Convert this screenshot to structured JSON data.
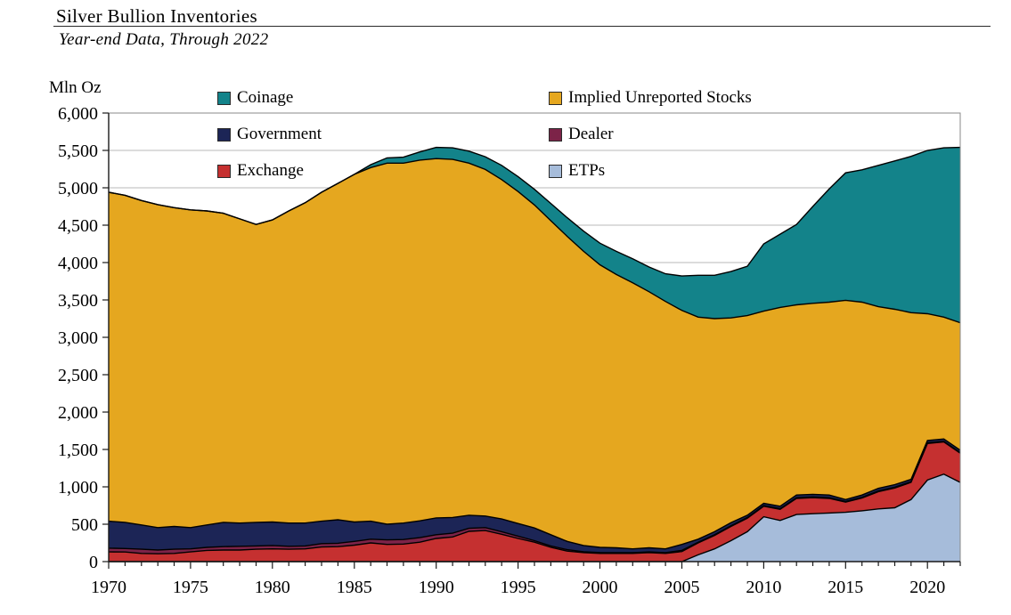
{
  "header": {
    "title": "Silver Bullion Inventories",
    "subtitle": "Year-end Data, Through 2022",
    "y_unit": "Mln Oz"
  },
  "chart_data": {
    "type": "area",
    "stacked": true,
    "title": "Silver Bullion Inventories",
    "subtitle": "Year-end Data, Through 2022",
    "ylabel": "Mln Oz",
    "xlabel": "",
    "ylim": [
      0,
      6000
    ],
    "ytick_step": 500,
    "grid": "horizontal",
    "legend_position": "top-inside-two-columns",
    "years": [
      1970,
      1971,
      1972,
      1973,
      1974,
      1975,
      1976,
      1977,
      1978,
      1979,
      1980,
      1981,
      1982,
      1983,
      1984,
      1985,
      1986,
      1987,
      1988,
      1989,
      1990,
      1991,
      1992,
      1993,
      1994,
      1995,
      1996,
      1997,
      1998,
      1999,
      2000,
      2001,
      2002,
      2003,
      2004,
      2005,
      2006,
      2007,
      2008,
      2009,
      2010,
      2011,
      2012,
      2013,
      2014,
      2015,
      2016,
      2017,
      2018,
      2019,
      2020,
      2021,
      2022
    ],
    "xtick_years": [
      1970,
      1975,
      1980,
      1985,
      1990,
      1995,
      2000,
      2005,
      2010,
      2015,
      2020
    ],
    "yticks": [
      0,
      500,
      1000,
      1500,
      2000,
      2500,
      3000,
      3500,
      4000,
      4500,
      5000,
      5500,
      6000
    ],
    "ytick_labels": [
      "0",
      "500",
      "1,000",
      "1,500",
      "2,000",
      "2,500",
      "3,000",
      "3,500",
      "4,000",
      "4,500",
      "5,000",
      "5,500",
      "6,000"
    ],
    "series": [
      {
        "name": "ETPs",
        "color": "#a6bcda",
        "values": [
          0,
          0,
          0,
          0,
          0,
          0,
          0,
          0,
          0,
          0,
          0,
          0,
          0,
          0,
          0,
          0,
          0,
          0,
          0,
          0,
          0,
          0,
          0,
          0,
          0,
          0,
          0,
          0,
          0,
          0,
          0,
          0,
          0,
          0,
          0,
          0,
          90,
          170,
          280,
          400,
          600,
          550,
          630,
          640,
          650,
          660,
          680,
          705,
          720,
          830,
          1090,
          1170,
          1060
        ]
      },
      {
        "name": "Exchange",
        "color": "#c53030",
        "values": [
          130,
          128,
          110,
          105,
          110,
          130,
          150,
          155,
          155,
          165,
          170,
          165,
          170,
          195,
          200,
          220,
          250,
          230,
          235,
          260,
          310,
          330,
          405,
          415,
          365,
          310,
          260,
          190,
          140,
          120,
          110,
          110,
          110,
          120,
          110,
          135,
          160,
          180,
          190,
          180,
          140,
          150,
          215,
          215,
          195,
          135,
          170,
          230,
          265,
          230,
          490,
          430,
          390
        ]
      },
      {
        "name": "Dealer",
        "color": "#7c2348",
        "values": [
          50,
          47,
          55,
          50,
          55,
          40,
          40,
          45,
          50,
          45,
          45,
          40,
          40,
          45,
          45,
          50,
          50,
          60,
          60,
          60,
          50,
          50,
          40,
          40,
          35,
          30,
          20,
          20,
          20,
          12,
          12,
          10,
          10,
          10,
          10,
          15,
          10,
          10,
          10,
          10,
          10,
          10,
          10,
          10,
          10,
          10,
          10,
          10,
          10,
          10,
          10,
          10,
          10
        ]
      },
      {
        "name": "Government",
        "color": "#1c2556",
        "values": [
          360,
          350,
          325,
          300,
          305,
          285,
          300,
          325,
          310,
          315,
          315,
          310,
          305,
          300,
          315,
          260,
          240,
          210,
          220,
          225,
          225,
          210,
          175,
          155,
          170,
          170,
          170,
          150,
          110,
          83,
          68,
          65,
          50,
          55,
          50,
          80,
          40,
          40,
          40,
          30,
          30,
          30,
          35,
          35,
          35,
          25,
          30,
          35,
          35,
          30,
          30,
          30,
          30
        ]
      },
      {
        "name": "Implied Unreported Stocks",
        "color": "#e5a71f",
        "values": [
          4400,
          4375,
          4340,
          4320,
          4265,
          4250,
          4200,
          4135,
          4070,
          3985,
          4040,
          4175,
          4285,
          4400,
          4500,
          4650,
          4730,
          4830,
          4815,
          4825,
          4805,
          4790,
          4710,
          4635,
          4540,
          4440,
          4320,
          4200,
          4080,
          3935,
          3780,
          3655,
          3560,
          3425,
          3310,
          3130,
          2970,
          2850,
          2740,
          2670,
          2570,
          2660,
          2545,
          2555,
          2580,
          2665,
          2580,
          2430,
          2345,
          2230,
          1695,
          1630,
          1705
        ]
      },
      {
        "name": "Coinage",
        "color": "#13838a",
        "values": [
          0,
          0,
          0,
          0,
          0,
          0,
          0,
          0,
          0,
          0,
          0,
          0,
          0,
          0,
          0,
          0,
          40,
          70,
          80,
          110,
          150,
          155,
          160,
          170,
          190,
          200,
          210,
          230,
          250,
          270,
          290,
          310,
          320,
          330,
          370,
          460,
          560,
          580,
          620,
          660,
          900,
          980,
          1075,
          1295,
          1515,
          1705,
          1770,
          1890,
          1985,
          2090,
          2185,
          2265,
          2345
        ]
      }
    ],
    "legend": [
      {
        "label": "Coinage",
        "color": "#13838a"
      },
      {
        "label": "Implied Unreported Stocks",
        "color": "#e5a71f"
      },
      {
        "label": "Government",
        "color": "#1c2556"
      },
      {
        "label": "Dealer",
        "color": "#7c2348"
      },
      {
        "label": "Exchange",
        "color": "#c53030"
      },
      {
        "label": "ETPs",
        "color": "#a6bcda"
      }
    ],
    "style": {
      "gridline_color": "#b8b8b8",
      "border_color": "#8a8a8a",
      "axis_color": "#1a1a1a",
      "band_outline_color": "#000000",
      "background": "#ffffff"
    }
  }
}
